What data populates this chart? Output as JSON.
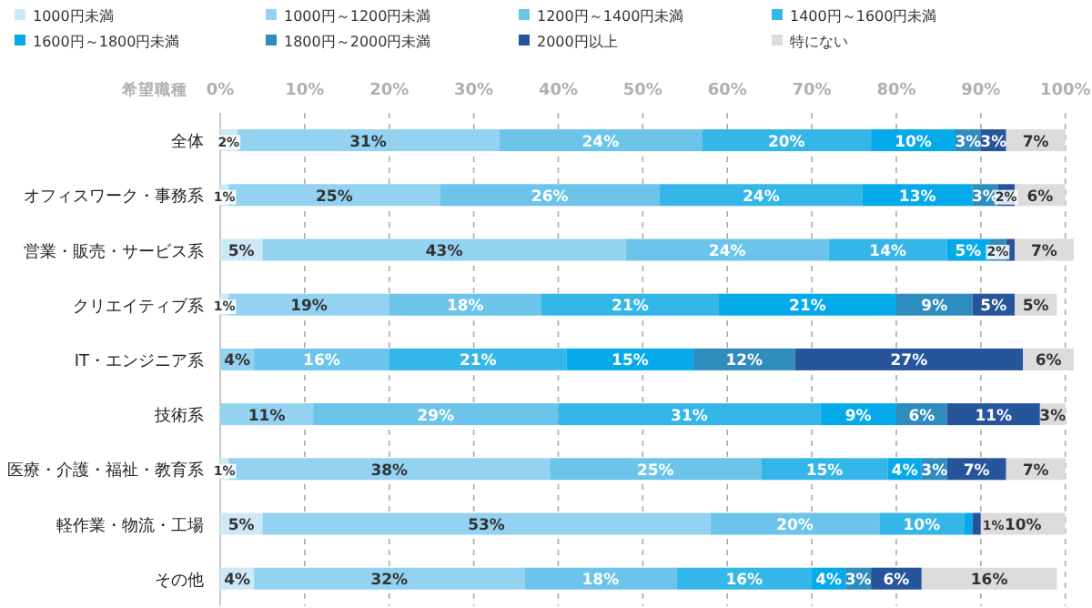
{
  "chart_data": {
    "type": "bar",
    "orientation": "horizontal",
    "stacked": true,
    "grid": "x",
    "legend": "top",
    "annotations": [
      "希望職種"
    ],
    "categories": [
      "全体",
      "オフィスワーク・事務系",
      "営業・販売・サービス系",
      "クリエイティブ系",
      "IT・エンジニア系",
      "技術系",
      "医療・介護・福祉・教育系",
      "軽作業・物流・工場",
      "その他"
    ],
    "xlim": [
      0,
      101
    ],
    "xticks": [
      {
        "value": 0,
        "label": "0%"
      },
      {
        "value": 10,
        "label": "10%"
      },
      {
        "value": 20,
        "label": "20%"
      },
      {
        "value": 30,
        "label": "30%"
      },
      {
        "value": 40,
        "label": "40%"
      },
      {
        "value": 50,
        "label": "50%"
      },
      {
        "value": 60,
        "label": "60%"
      },
      {
        "value": 70,
        "label": "70%"
      },
      {
        "value": 80,
        "label": "80%"
      },
      {
        "value": 90,
        "label": "90%"
      },
      {
        "value": 100,
        "label": "100%"
      }
    ],
    "series": [
      {
        "name": "1000円未満",
        "color": "#cde8f6",
        "values": [
          2,
          1,
          5,
          1,
          0,
          0,
          1,
          5,
          4
        ],
        "value_labels": [
          "2%",
          "1%",
          "5%",
          "1%",
          null,
          null,
          "1%",
          "5%",
          "4%"
        ]
      },
      {
        "name": "1000円～1200円未満",
        "color": "#93d2f1",
        "values": [
          31,
          25,
          43,
          19,
          4,
          11,
          38,
          53,
          32
        ],
        "value_labels": [
          "31%",
          "25%",
          "43%",
          "19%",
          "4%",
          "11%",
          "38%",
          "53%",
          "32%"
        ]
      },
      {
        "name": "1200円～1400円未満",
        "color": "#6cc4ea",
        "values": [
          24,
          26,
          24,
          18,
          16,
          29,
          25,
          20,
          18
        ],
        "value_labels": [
          "24%",
          "26%",
          "24%",
          "18%",
          "16%",
          "29%",
          "25%",
          "20%",
          "18%"
        ]
      },
      {
        "name": "1400円～1600円未満",
        "color": "#35b6e9",
        "values": [
          20,
          24,
          14,
          21,
          21,
          31,
          15,
          10,
          16
        ],
        "value_labels": [
          "20%",
          "24%",
          "14%",
          "21%",
          "21%",
          "31%",
          "15%",
          "10%",
          "16%"
        ]
      },
      {
        "name": "1600円～1800円未満",
        "color": "#05aaea",
        "values": [
          10,
          13,
          5,
          21,
          15,
          9,
          4,
          1,
          4
        ],
        "value_labels": [
          "10%",
          "13%",
          "5%",
          "21%",
          "15%",
          "9%",
          "4%",
          "1%",
          "4%"
        ]
      },
      {
        "name": "1800円～2000円未満",
        "color": "#2f8cbf",
        "values": [
          3,
          3,
          2,
          9,
          12,
          6,
          3,
          0,
          3
        ],
        "value_labels": [
          "3%",
          "3%",
          "2%",
          "9%",
          "12%",
          "6%",
          "3%",
          null,
          "3%"
        ]
      },
      {
        "name": "2000円以上",
        "color": "#26559c",
        "values": [
          3,
          2,
          1,
          5,
          27,
          11,
          7,
          1,
          6
        ],
        "value_labels": [
          "3%",
          "2%",
          null,
          "5%",
          "27%",
          "11%",
          "7%",
          null,
          "6%"
        ]
      },
      {
        "name": "特にない",
        "color": "#dcdcdc",
        "values": [
          7,
          6,
          7,
          5,
          6,
          3,
          7,
          10,
          16
        ],
        "value_labels": [
          "7%",
          "6%",
          "7%",
          "5%",
          "6%",
          "3%",
          "7%",
          "10%",
          "16%"
        ]
      }
    ]
  }
}
